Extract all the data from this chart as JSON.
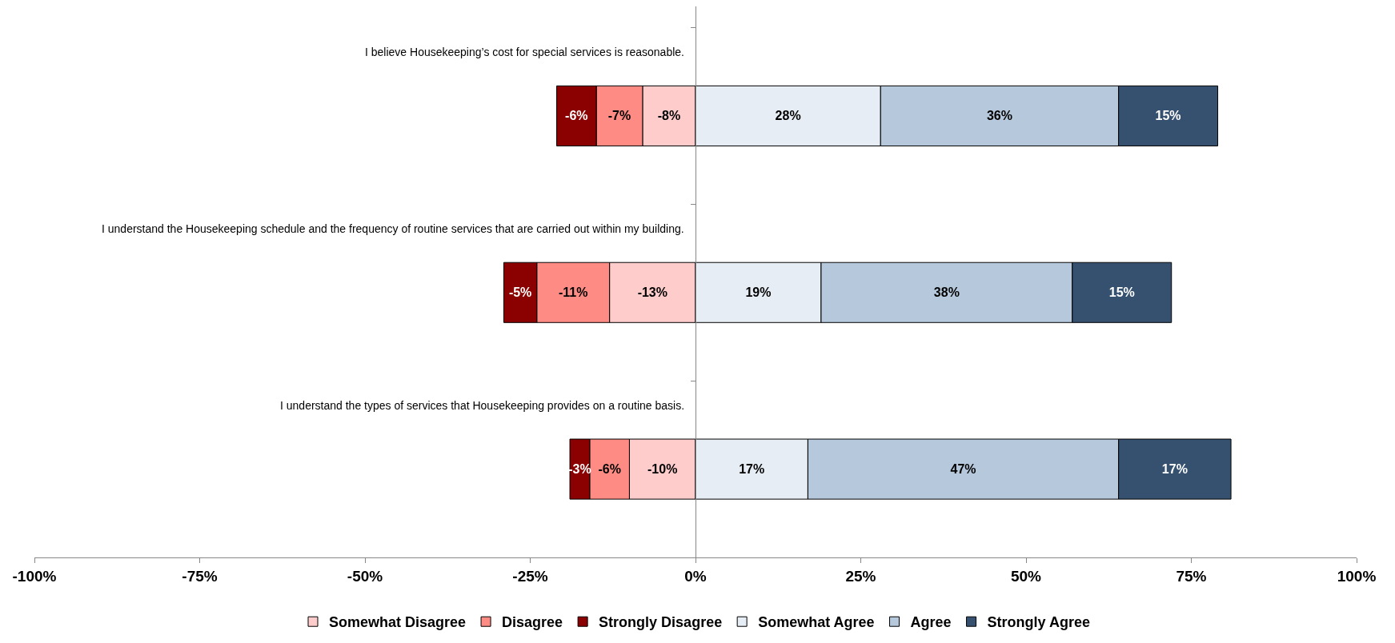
{
  "chart_data": {
    "type": "bar",
    "orientation": "horizontal",
    "stacked": true,
    "categories": [
      "I believe Housekeeping’s cost for special services is reasonable.",
      "I understand the Housekeeping schedule and the frequency of routine services that are carried out within my building.",
      "I understand the types of services that Housekeeping provides on a routine basis."
    ],
    "series": [
      {
        "name": "Somewhat Disagree",
        "color": "#ffcccc",
        "values": [
          -8,
          -13,
          -10
        ],
        "value_labels": [
          "-8%",
          "-13%",
          "-10%"
        ]
      },
      {
        "name": "Disagree",
        "color": "#ff8c84",
        "values": [
          -7,
          -11,
          -6
        ],
        "value_labels": [
          "-7%",
          "-11%",
          "-6%"
        ]
      },
      {
        "name": "Strongly Disagree",
        "color": "#8b0000",
        "values": [
          -6,
          -5,
          -3
        ],
        "value_labels": [
          "-6%",
          "-5%",
          "-3%"
        ]
      },
      {
        "name": "Somewhat Agree",
        "color": "#e6edf4",
        "values": [
          28,
          19,
          17
        ],
        "value_labels": [
          "28%",
          "19%",
          "17%"
        ]
      },
      {
        "name": "Agree",
        "color": "#b5c8dc",
        "values": [
          36,
          38,
          47
        ],
        "value_labels": [
          "36%",
          "38%",
          "47%"
        ]
      },
      {
        "name": "Strongly Agree",
        "color": "#36516f",
        "values": [
          15,
          15,
          17
        ],
        "value_labels": [
          "15%",
          "15%",
          "17%"
        ]
      }
    ],
    "xlim": [
      -100,
      100
    ],
    "xticks": [
      {
        "value": -100,
        "label": "-100%"
      },
      {
        "value": -75,
        "label": "-75%"
      },
      {
        "value": -50,
        "label": "-50%"
      },
      {
        "value": -25,
        "label": "-25%"
      },
      {
        "value": 0,
        "label": "0%"
      },
      {
        "value": 25,
        "label": "25%"
      },
      {
        "value": 50,
        "label": "50%"
      },
      {
        "value": 75,
        "label": "75%"
      },
      {
        "value": 100,
        "label": "100%"
      }
    ],
    "grid": false,
    "legend": "bottom"
  }
}
